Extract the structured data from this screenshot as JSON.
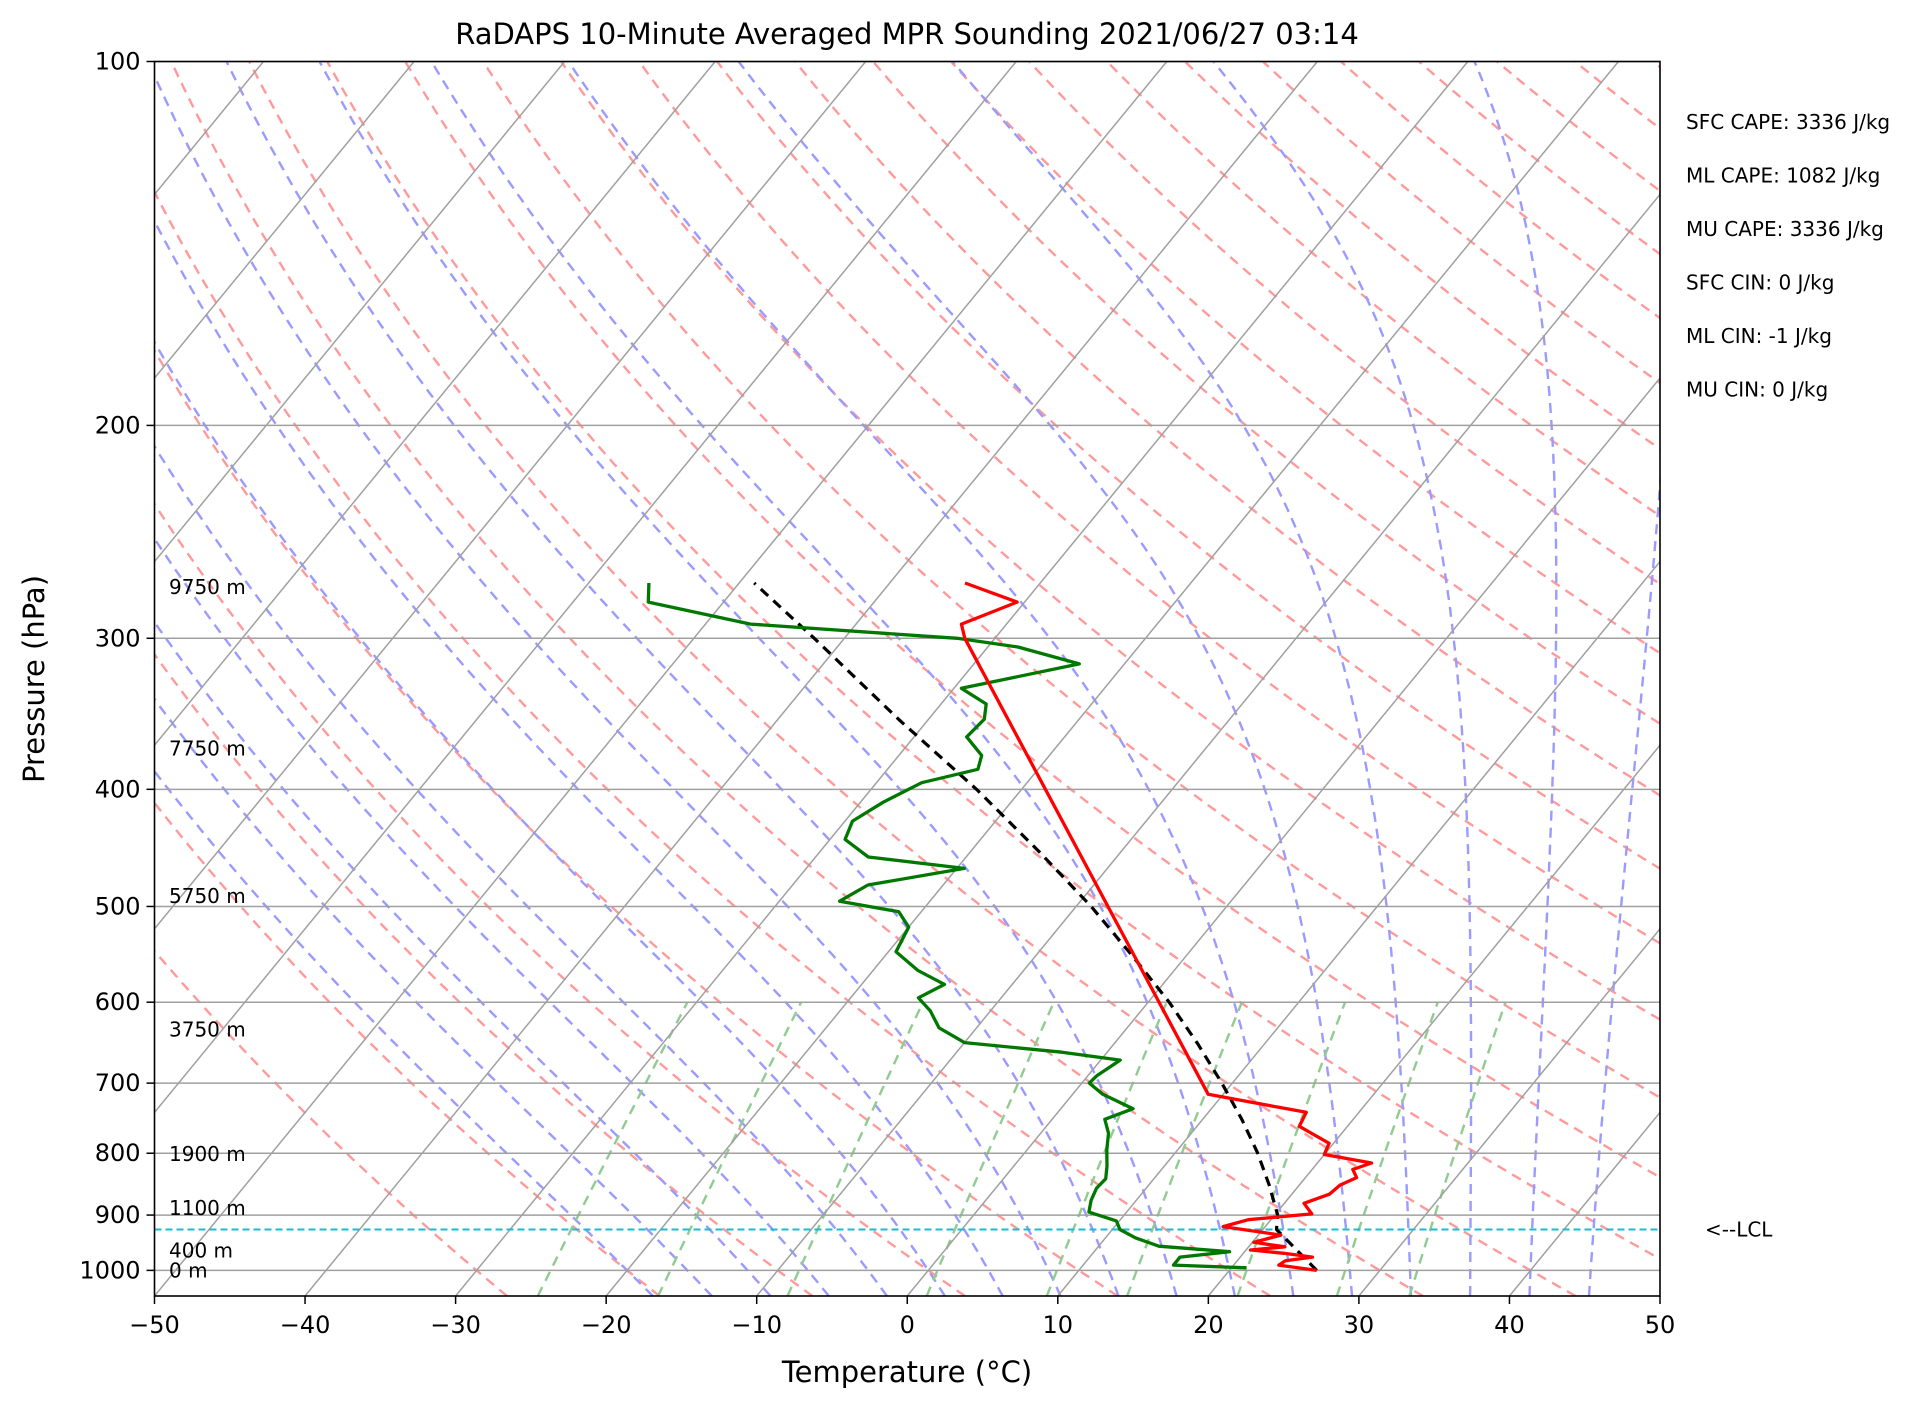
{
  "chart_data": {
    "type": "skew-t",
    "title": "RaDAPS 10-Minute Averaged MPR Sounding 2021/06/27 03:14",
    "xlabel": "Temperature (°C)",
    "ylabel": "Pressure (hPa)",
    "xlim": [
      -50,
      50
    ],
    "ylim": [
      1050,
      100
    ],
    "x_ticks": [
      "−50",
      "−40",
      "−30",
      "−20",
      "−10",
      "0",
      "10",
      "20",
      "30",
      "40",
      "50"
    ],
    "y_ticks": [
      "100",
      "200",
      "300",
      "400",
      "500",
      "600",
      "700",
      "800",
      "900",
      "1000"
    ],
    "height_labels": [
      {
        "text": "9750 m",
        "p": 272
      },
      {
        "text": "7750 m",
        "p": 370
      },
      {
        "text": "5750 m",
        "p": 490
      },
      {
        "text": "3750 m",
        "p": 632
      },
      {
        "text": "1900 m",
        "p": 801
      },
      {
        "text": "1100 m",
        "p": 888
      },
      {
        "text": "400 m",
        "p": 963
      },
      {
        "text": "0 m",
        "p": 1000
      }
    ],
    "indices": [
      "SFC CAPE: 3336 J/kg",
      "ML CAPE: 1082 J/kg",
      "MU CAPE: 3336 J/kg",
      "SFC CIN: 0 J/kg",
      "ML CIN: -1 J/kg",
      "MU CIN: 0 J/kg"
    ],
    "lcl": {
      "label": "<--LCL",
      "p": 925
    },
    "temperature": [
      {
        "p": 1000,
        "t": 25.8
      },
      {
        "p": 990,
        "t": 23.0
      },
      {
        "p": 982,
        "t": 23.2
      },
      {
        "p": 975,
        "t": 24.8
      },
      {
        "p": 968,
        "t": 22.7
      },
      {
        "p": 962,
        "t": 20.3
      },
      {
        "p": 956,
        "t": 22.4
      },
      {
        "p": 948,
        "t": 20.1
      },
      {
        "p": 935,
        "t": 21.5
      },
      {
        "p": 920,
        "t": 17.2
      },
      {
        "p": 908,
        "t": 18.5
      },
      {
        "p": 898,
        "t": 22.4
      },
      {
        "p": 880,
        "t": 21.3
      },
      {
        "p": 865,
        "t": 22.5
      },
      {
        "p": 850,
        "t": 22.7
      },
      {
        "p": 838,
        "t": 23.4
      },
      {
        "p": 825,
        "t": 22.7
      },
      {
        "p": 815,
        "t": 23.6
      },
      {
        "p": 802,
        "t": 20.0
      },
      {
        "p": 785,
        "t": 19.7
      },
      {
        "p": 760,
        "t": 16.8
      },
      {
        "p": 740,
        "t": 16.5
      },
      {
        "p": 725,
        "t": 12.0
      },
      {
        "p": 715,
        "t": 9.0
      },
      {
        "p": 300,
        "t": -32.0
      },
      {
        "p": 292,
        "t": -33.0
      },
      {
        "p": 280,
        "t": -30.5
      },
      {
        "p": 270,
        "t": -35.0
      }
    ],
    "dewpoint": [
      {
        "p": 995,
        "t": 21.0
      },
      {
        "p": 990,
        "t": 16.0
      },
      {
        "p": 982,
        "t": 16.0
      },
      {
        "p": 975,
        "t": 16.0
      },
      {
        "p": 965,
        "t": 19.0
      },
      {
        "p": 955,
        "t": 14.0
      },
      {
        "p": 940,
        "t": 12.0
      },
      {
        "p": 925,
        "t": 10.5
      },
      {
        "p": 910,
        "t": 9.8
      },
      {
        "p": 895,
        "t": 7.5
      },
      {
        "p": 875,
        "t": 7.0
      },
      {
        "p": 855,
        "t": 6.7
      },
      {
        "p": 840,
        "t": 6.8
      },
      {
        "p": 820,
        "t": 6.2
      },
      {
        "p": 795,
        "t": 5.3
      },
      {
        "p": 770,
        "t": 4.5
      },
      {
        "p": 750,
        "t": 3.5
      },
      {
        "p": 735,
        "t": 4.8
      },
      {
        "p": 715,
        "t": 2.0
      },
      {
        "p": 700,
        "t": 0.5
      },
      {
        "p": 690,
        "t": 0.6
      },
      {
        "p": 670,
        "t": 1.3
      },
      {
        "p": 660,
        "t": -3.0
      },
      {
        "p": 648,
        "t": -10.0
      },
      {
        "p": 630,
        "t": -12.5
      },
      {
        "p": 610,
        "t": -14.0
      },
      {
        "p": 595,
        "t": -15.5
      },
      {
        "p": 580,
        "t": -14.5
      },
      {
        "p": 565,
        "t": -17.0
      },
      {
        "p": 545,
        "t": -19.5
      },
      {
        "p": 520,
        "t": -20.0
      },
      {
        "p": 505,
        "t": -21.5
      },
      {
        "p": 495,
        "t": -26.0
      },
      {
        "p": 480,
        "t": -25.0
      },
      {
        "p": 465,
        "t": -19.5
      },
      {
        "p": 455,
        "t": -26.5
      },
      {
        "p": 440,
        "t": -29.0
      },
      {
        "p": 425,
        "t": -29.5
      },
      {
        "p": 410,
        "t": -28.5
      },
      {
        "p": 395,
        "t": -27.0
      },
      {
        "p": 385,
        "t": -24.0
      },
      {
        "p": 375,
        "t": -24.5
      },
      {
        "p": 362,
        "t": -26.5
      },
      {
        "p": 350,
        "t": -26.3
      },
      {
        "p": 340,
        "t": -27.0
      },
      {
        "p": 330,
        "t": -29.5
      },
      {
        "p": 315,
        "t": -23.0
      },
      {
        "p": 305,
        "t": -28.0
      },
      {
        "p": 300,
        "t": -32.5
      },
      {
        "p": 292,
        "t": -47.0
      },
      {
        "p": 280,
        "t": -55.0
      },
      {
        "p": 270,
        "t": -56.0
      }
    ],
    "parcel": [
      {
        "p": 1000,
        "t": 25.8
      },
      {
        "p": 925,
        "t": 20.9
      },
      {
        "p": 900,
        "t": 20.2
      },
      {
        "p": 850,
        "t": 18.0
      },
      {
        "p": 800,
        "t": 15.5
      },
      {
        "p": 750,
        "t": 12.6
      },
      {
        "p": 700,
        "t": 9.3
      },
      {
        "p": 650,
        "t": 5.6
      },
      {
        "p": 600,
        "t": 1.4
      },
      {
        "p": 550,
        "t": -3.5
      },
      {
        "p": 500,
        "t": -9.0
      },
      {
        "p": 450,
        "t": -15.5
      },
      {
        "p": 400,
        "t": -23.0
      },
      {
        "p": 350,
        "t": -32.0
      },
      {
        "p": 300,
        "t": -42.0
      },
      {
        "p": 270,
        "t": -49.0
      }
    ],
    "colors": {
      "temperature": "#ff0000",
      "dewpoint": "#007800",
      "parcel": "#000000",
      "dry_adiabats": "#ff9a9a",
      "moist_adiabats": "#9a9aff",
      "mixing_ratio": "#90cc90",
      "isotherms": "#a0a0a0",
      "lcl_line": "#17becf"
    },
    "grid": true
  }
}
